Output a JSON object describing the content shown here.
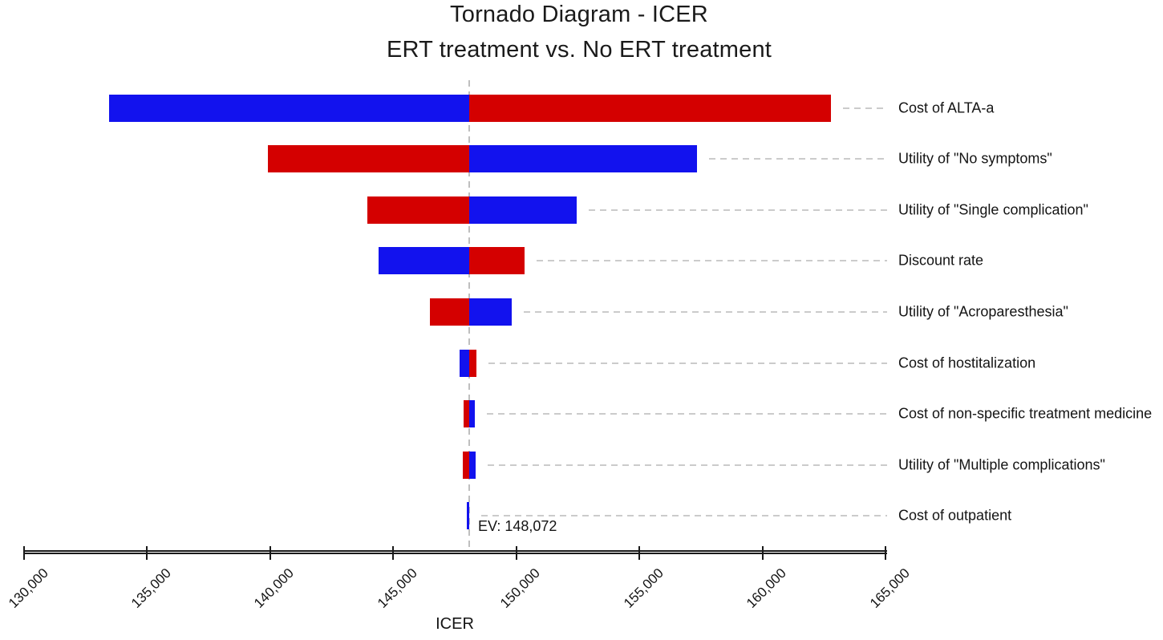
{
  "page": {
    "background": "#ffffff"
  },
  "chart_data": {
    "type": "bar",
    "variant": "tornado-diagram",
    "title": "Tornado Diagram - ICER",
    "subtitle": "ERT treatment vs. No ERT treatment",
    "xlabel": "ICER",
    "x_axis": {
      "min": 130000,
      "max": 165000,
      "tick_step": 5000,
      "tick_labels": [
        "130,000",
        "135,000",
        "140,000",
        "145,000",
        "150,000",
        "155,000",
        "160,000",
        "165,000"
      ]
    },
    "ev": 148072,
    "ev_label": "EV: 148,072",
    "colors": {
      "blue": "#1212ee",
      "red": "#d40000",
      "leader_dash": "#cbcbcb",
      "ev_line": "#bfbfbf",
      "axis": "#1a1a1a"
    },
    "legend": "blue and red segments show ICER at low/high parameter bounds relative to EV",
    "bars": [
      {
        "label": "Cost of ALTA-a",
        "low": 133450,
        "high": 162800,
        "left_color": "blue",
        "right_color": "red"
      },
      {
        "label": "Utility of \"No symptoms\"",
        "low": 139900,
        "high": 157350,
        "left_color": "red",
        "right_color": "blue"
      },
      {
        "label": "Utility of \"Single complication\"",
        "low": 143950,
        "high": 152450,
        "left_color": "red",
        "right_color": "blue"
      },
      {
        "label": "Discount rate",
        "low": 144400,
        "high": 150350,
        "left_color": "blue",
        "right_color": "red"
      },
      {
        "label": "Utility of \"Acroparesthesia\"",
        "low": 146500,
        "high": 149800,
        "left_color": "red",
        "right_color": "blue"
      },
      {
        "label": "Cost of hostitalization",
        "low": 147700,
        "high": 148380,
        "left_color": "blue",
        "right_color": "red"
      },
      {
        "label": "Cost of non-specific treatment medicine",
        "low": 147860,
        "high": 148330,
        "left_color": "red",
        "right_color": "blue"
      },
      {
        "label": "Utility of \"Multiple complications\"",
        "low": 147830,
        "high": 148340,
        "left_color": "red",
        "right_color": "blue"
      },
      {
        "label": "Cost of outpatient",
        "low": 147990,
        "high": 148072,
        "left_color": "blue",
        "right_color": "blue"
      }
    ]
  }
}
